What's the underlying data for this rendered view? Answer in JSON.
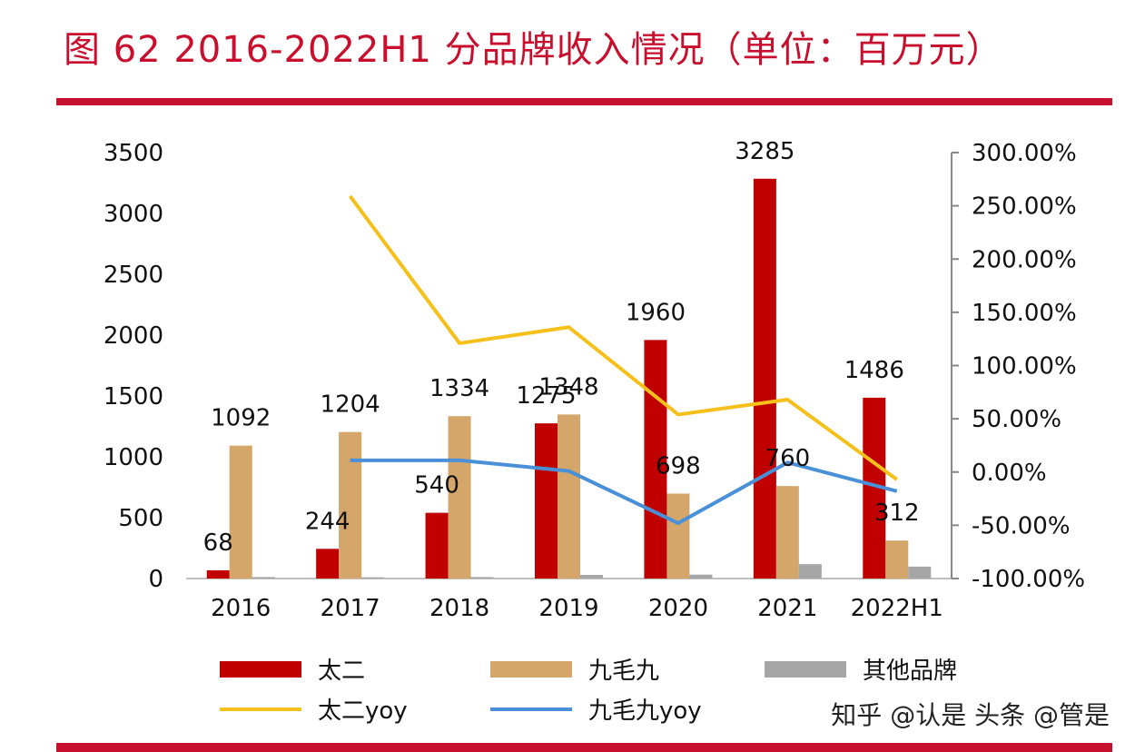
{
  "title": "图 62 2016-2022H1 分品牌收入情况（单位：百万元）",
  "chart_data": {
    "type": "bar",
    "categories": [
      "2016",
      "2017",
      "2018",
      "2019",
      "2020",
      "2021",
      "2022H1"
    ],
    "series": [
      {
        "name": "太二",
        "type": "bar",
        "axis": "left",
        "color": "#c00000",
        "values": [
          68,
          244,
          540,
          1275,
          1960,
          3285,
          1486
        ],
        "labels": [
          "68",
          "244",
          "540",
          "1275",
          "1960",
          "3285",
          "1486"
        ]
      },
      {
        "name": "九毛九",
        "type": "bar",
        "axis": "left",
        "color": "#d4a66a",
        "values": [
          1092,
          1204,
          1334,
          1348,
          698,
          760,
          312
        ],
        "labels": [
          "1092",
          "1204",
          "1334",
          "1348",
          "698",
          "760",
          "312"
        ]
      },
      {
        "name": "其他品牌",
        "type": "bar",
        "axis": "left",
        "color": "#a6a6a6",
        "values": [
          12,
          10,
          12,
          30,
          32,
          118,
          98
        ]
      },
      {
        "name": "太二yoy",
        "type": "line",
        "axis": "right",
        "color": "#f5c01a",
        "values": [
          null,
          259,
          121,
          136,
          54,
          68,
          -7
        ]
      },
      {
        "name": "九毛九yoy",
        "type": "line",
        "axis": "right",
        "color": "#4a90d9",
        "values": [
          null,
          11,
          11,
          1,
          -48,
          9,
          -18
        ]
      }
    ],
    "left_axis": {
      "min": 0,
      "max": 3500,
      "ticks": [
        "0",
        "500",
        "1000",
        "1500",
        "2000",
        "2500",
        "3000",
        "3500"
      ]
    },
    "right_axis": {
      "min": -100,
      "max": 300,
      "ticks": [
        "-100.00%",
        "-50.00%",
        "0.00%",
        "50.00%",
        "100.00%",
        "150.00%",
        "200.00%",
        "250.00%",
        "300.00%"
      ]
    },
    "legend_position": "bottom"
  },
  "legend": [
    {
      "label": "太二"
    },
    {
      "label": "九毛九"
    },
    {
      "label": "其他品牌"
    },
    {
      "label": "太二yoy"
    },
    {
      "label": "九毛九yoy"
    }
  ],
  "watermark": "知乎 @认是 头条 @管是"
}
